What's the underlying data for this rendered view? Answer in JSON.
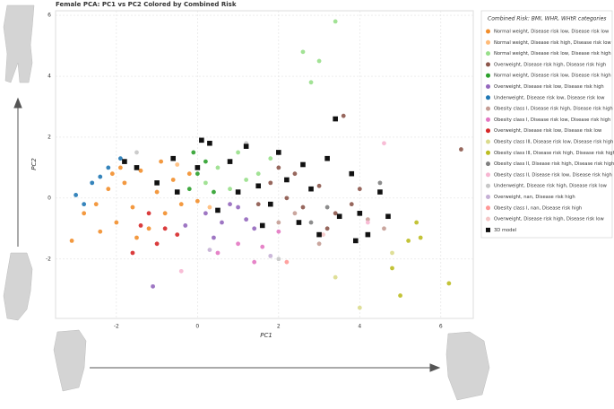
{
  "chart_data": {
    "type": "scatter",
    "title": "Female PCA: PC1 vs PC2 Colored by Combined Risk",
    "x_label": "PC1",
    "y_label": "PC2",
    "legend_title": "Combined Risk: BMI, WHR, WHtR categories",
    "xlim": [
      -3.5,
      6.8
    ],
    "ylim": [
      -3.95,
      6.15
    ],
    "xticks": [
      -2,
      0,
      2,
      4,
      6
    ],
    "yticks": [
      -2,
      0,
      2,
      4,
      6
    ],
    "grid": true,
    "legend": "right",
    "series": [
      {
        "name": "Normal weight, Disease risk low, Disease risk low",
        "color": "#f28e2b",
        "marker": "circle",
        "x": [
          -2.8,
          -2.5,
          -2.2,
          -2,
          -1.8,
          -1.6,
          -1.4,
          -1.2,
          -1,
          -0.8,
          -0.6,
          -0.4,
          -0.2,
          0,
          -1.9,
          -2.4,
          -3.1,
          -1.5,
          -0.9,
          -2.1
        ],
        "y": [
          -0.5,
          -0.2,
          0.3,
          -0.8,
          0.5,
          -0.3,
          0.9,
          -1,
          0.2,
          -0.5,
          0.6,
          -0.2,
          0.8,
          -0.1,
          1,
          -1.1,
          -1.4,
          -1.3,
          1.2,
          0.8
        ]
      },
      {
        "name": "Normal weight, Disease risk high, Disease risk low",
        "color": "#ffbb78",
        "marker": "circle",
        "x": [
          -0.5,
          0.3
        ],
        "y": [
          1.1,
          -0.3
        ]
      },
      {
        "name": "Normal weight, Disease risk low, Disease risk high",
        "color": "#98df8a",
        "marker": "circle",
        "x": [
          0.5,
          1,
          1.5,
          0.2,
          0.8,
          1.8,
          2.6,
          2.8,
          3.4,
          3,
          1.2
        ],
        "y": [
          1,
          1.5,
          0.8,
          0.5,
          0.3,
          1.3,
          4.8,
          3.8,
          5.8,
          4.5,
          0.6
        ]
      },
      {
        "name": "Overweight, Disease risk high, Disease risk high",
        "color": "#8c564b",
        "marker": "circle",
        "x": [
          1.8,
          2.2,
          2.6,
          3,
          3.4,
          2,
          3.8,
          2.4,
          3.2,
          4,
          3.6,
          6.5,
          1.5
        ],
        "y": [
          0.5,
          0,
          -0.3,
          0.4,
          -0.5,
          1,
          -0.2,
          0.8,
          -1,
          0.3,
          2.7,
          1.6,
          -0.2
        ]
      },
      {
        "name": "Normal weight, Disease risk low, Disease risk high",
        "color": "#2ca02c",
        "marker": "circle",
        "x": [
          0,
          -0.2,
          0.2,
          0.4,
          -0.1
        ],
        "y": [
          0.8,
          0.3,
          1.2,
          0.2,
          1.5
        ]
      },
      {
        "name": "Overweight, Disease risk low, Disease risk high",
        "color": "#9467bd",
        "marker": "circle",
        "x": [
          0.2,
          0.6,
          1,
          1.4,
          0.4,
          0.8,
          1.2,
          -0.3,
          -1.1
        ],
        "y": [
          -0.5,
          -0.8,
          -0.3,
          -1,
          -1.3,
          -0.2,
          -0.7,
          -0.9,
          -2.9
        ]
      },
      {
        "name": "Underweight, Disease risk low, Disease risk low",
        "color": "#1f77b4",
        "marker": "circle",
        "x": [
          -3,
          -2.6,
          -2.2,
          -2.8,
          -1.9,
          -2.4
        ],
        "y": [
          0.1,
          0.5,
          1,
          -0.2,
          1.3,
          0.7
        ]
      },
      {
        "name": "Obesity class I, Disease risk high, Disease risk high",
        "color": "#c49c94",
        "marker": "circle",
        "x": [
          2.4,
          3,
          4.2,
          2,
          4.6
        ],
        "y": [
          -0.5,
          -1.5,
          -0.7,
          -0.8,
          -1
        ]
      },
      {
        "name": "Obesity class I, Disease risk low, Disease risk high",
        "color": "#e377c2",
        "marker": "circle",
        "x": [
          1,
          1.6,
          2,
          0.5,
          1.4
        ],
        "y": [
          -1.5,
          -1.6,
          -1.1,
          -1.8,
          -2.1
        ]
      },
      {
        "name": "Overweight, Disease risk low, Disease risk low",
        "color": "#d62728",
        "marker": "circle",
        "x": [
          -1.2,
          -0.8,
          -1,
          -1.6,
          -0.5,
          -1.4
        ],
        "y": [
          -0.5,
          -1,
          -1.5,
          -1.8,
          -1.2,
          -0.9
        ]
      },
      {
        "name": "Obesity class III, Disease risk low, Disease risk high",
        "color": "#dbdb8d",
        "marker": "circle",
        "x": [
          3.4,
          4,
          4.8
        ],
        "y": [
          -2.6,
          -3.6,
          -1.8
        ]
      },
      {
        "name": "Obesity class III, Disease risk high, Disease risk high",
        "color": "#bcbd22",
        "marker": "circle",
        "x": [
          5.4,
          5.2,
          5,
          4.8,
          6.2,
          5.5
        ],
        "y": [
          -0.8,
          -1.4,
          -3.2,
          -2.3,
          -2.8,
          -1.3
        ]
      },
      {
        "name": "Obesity class II, Disease risk high, Disease risk high",
        "color": "#7f7f7f",
        "marker": "circle",
        "x": [
          3.2,
          4.5,
          2.8
        ],
        "y": [
          -0.3,
          0.5,
          -0.8
        ]
      },
      {
        "name": "Obesity class II, Disease risk low, Disease risk high",
        "color": "#f7b6d2",
        "marker": "circle",
        "x": [
          4.6,
          4.2,
          -0.4
        ],
        "y": [
          1.8,
          -0.8,
          -2.4
        ]
      },
      {
        "name": "Underweight, Disease risk high, Disease risk low",
        "color": "#c7c7c7",
        "marker": "circle",
        "x": [
          -1.5,
          2,
          1.2
        ],
        "y": [
          1.5,
          -2,
          1.8
        ]
      },
      {
        "name": "Overweight, nan, Disease risk high",
        "color": "#c5b0d5",
        "marker": "circle",
        "x": [
          1.8,
          0.3
        ],
        "y": [
          -1.9,
          -1.7
        ]
      },
      {
        "name": "Obesity class I, nan, Disease risk high",
        "color": "#ff9896",
        "marker": "circle",
        "x": [
          2.2
        ],
        "y": [
          -2.1
        ]
      },
      {
        "name": "Overweight, Disease risk high, Disease risk low",
        "color": "#f4c6c6",
        "marker": "circle",
        "x": [
          3.1
        ],
        "y": [
          -1.2
        ]
      },
      {
        "name": "3D model",
        "color": "#111111",
        "marker": "square",
        "x": [
          -1.8,
          -1.5,
          -1,
          -0.5,
          0,
          0.3,
          0.5,
          0.8,
          1,
          1.2,
          1.5,
          1.8,
          2,
          2.2,
          2.5,
          2.8,
          3,
          3.2,
          3.5,
          3.8,
          4,
          4.2,
          4.5,
          4.7,
          3.4,
          -0.6,
          0.1,
          2.6,
          3.9,
          1.6
        ],
        "y": [
          1.2,
          1,
          0.5,
          0.2,
          1,
          1.8,
          -0.4,
          1.2,
          0.2,
          1.7,
          0.4,
          -0.2,
          1.5,
          0.6,
          -0.8,
          0.3,
          -1.2,
          1.3,
          -0.6,
          0.8,
          -0.5,
          -1.2,
          0.2,
          -0.6,
          2.6,
          1.3,
          1.9,
          1.1,
          -1.4,
          -0.9
        ]
      }
    ]
  }
}
